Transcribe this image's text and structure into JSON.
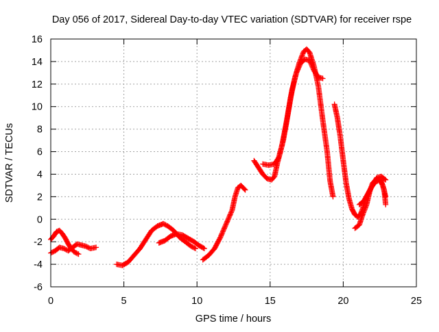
{
  "chart_data": {
    "type": "scatter",
    "title": "Day 056 of 2017, Sidereal Day-to-day VTEC variation (SDTVAR) for receiver rspe",
    "xlabel": "GPS time / hours",
    "ylabel": "SDTVAR / TECUs",
    "xlim": [
      0,
      25
    ],
    "ylim": [
      -6,
      16
    ],
    "x_ticks": [
      0,
      5,
      10,
      15,
      20,
      25
    ],
    "y_ticks": [
      -6,
      -4,
      -2,
      0,
      2,
      4,
      6,
      8,
      10,
      12,
      14,
      16
    ],
    "grid": true,
    "marker": "+",
    "series": [
      {
        "name": "SDTVAR",
        "color": "#ff0000",
        "segments": [
          [
            [
              0,
              -1.8
            ],
            [
              0.2,
              -1.5
            ],
            [
              0.4,
              -1.1
            ],
            [
              0.6,
              -1.0
            ],
            [
              0.8,
              -1.3
            ],
            [
              1.0,
              -1.7
            ],
            [
              1.2,
              -2.2
            ],
            [
              1.4,
              -2.6
            ],
            [
              1.6,
              -2.9
            ],
            [
              1.9,
              -3.1
            ]
          ],
          [
            [
              0,
              -3.0
            ],
            [
              0.3,
              -2.8
            ],
            [
              0.6,
              -2.5
            ],
            [
              0.9,
              -2.6
            ],
            [
              1.2,
              -2.8
            ],
            [
              1.5,
              -2.5
            ],
            [
              1.8,
              -2.2
            ],
            [
              2.1,
              -2.3
            ],
            [
              2.4,
              -2.4
            ],
            [
              2.7,
              -2.6
            ],
            [
              3.1,
              -2.5
            ]
          ],
          [
            [
              4.5,
              -4.0
            ],
            [
              4.9,
              -4.1
            ],
            [
              5.3,
              -3.8
            ],
            [
              5.7,
              -3.2
            ],
            [
              6.1,
              -2.6
            ],
            [
              6.5,
              -1.8
            ],
            [
              6.9,
              -1.0
            ],
            [
              7.3,
              -0.6
            ],
            [
              7.7,
              -0.4
            ],
            [
              8.0,
              -0.6
            ],
            [
              8.4,
              -1.0
            ],
            [
              8.8,
              -1.6
            ],
            [
              9.2,
              -2.0
            ],
            [
              9.6,
              -2.4
            ],
            [
              9.9,
              -2.6
            ]
          ],
          [
            [
              7.4,
              -2.1
            ],
            [
              7.8,
              -1.9
            ],
            [
              8.2,
              -1.5
            ],
            [
              8.6,
              -1.3
            ],
            [
              9.0,
              -1.4
            ],
            [
              9.4,
              -1.7
            ],
            [
              9.8,
              -2.0
            ],
            [
              10.1,
              -2.3
            ],
            [
              10.5,
              -2.6
            ]
          ],
          [
            [
              10.4,
              -3.6
            ],
            [
              10.8,
              -3.2
            ],
            [
              11.2,
              -2.6
            ],
            [
              11.6,
              -1.6
            ],
            [
              12.0,
              -0.4
            ],
            [
              12.4,
              0.8
            ],
            [
              12.6,
              2.0
            ],
            [
              12.8,
              2.8
            ],
            [
              13.0,
              3.0
            ],
            [
              13.3,
              2.6
            ]
          ],
          [
            [
              13.9,
              5.2
            ],
            [
              14.2,
              4.6
            ],
            [
              14.5,
              4.0
            ],
            [
              14.8,
              3.6
            ],
            [
              15.1,
              3.5
            ],
            [
              15.3,
              3.8
            ],
            [
              15.5,
              5.0
            ],
            [
              15.8,
              6.5
            ],
            [
              16.1,
              8.5
            ],
            [
              16.4,
              10.8
            ],
            [
              16.7,
              12.6
            ],
            [
              17.0,
              13.9
            ],
            [
              17.3,
              14.9
            ],
            [
              17.5,
              15.1
            ],
            [
              17.7,
              14.8
            ],
            [
              18.0,
              13.6
            ],
            [
              18.3,
              11.8
            ],
            [
              18.6,
              8.8
            ],
            [
              18.9,
              6.0
            ],
            [
              19.1,
              3.4
            ],
            [
              19.3,
              2.0
            ]
          ],
          [
            [
              14.5,
              4.9
            ],
            [
              14.9,
              4.8
            ],
            [
              15.3,
              4.9
            ],
            [
              15.6,
              5.5
            ],
            [
              15.9,
              7.0
            ],
            [
              16.2,
              9.2
            ],
            [
              16.5,
              11.5
            ],
            [
              16.8,
              13.0
            ],
            [
              17.1,
              13.9
            ],
            [
              17.4,
              14.2
            ],
            [
              17.7,
              14.1
            ],
            [
              18.0,
              13.2
            ],
            [
              18.3,
              12.6
            ],
            [
              18.6,
              12.5
            ]
          ],
          [
            [
              19.4,
              10.2
            ],
            [
              19.6,
              9.0
            ],
            [
              19.8,
              7.3
            ],
            [
              20.0,
              5.2
            ],
            [
              20.2,
              3.2
            ],
            [
              20.4,
              1.8
            ],
            [
              20.6,
              0.9
            ],
            [
              20.8,
              0.4
            ],
            [
              21.0,
              0.2
            ],
            [
              21.2,
              0.5
            ],
            [
              21.4,
              1.2
            ],
            [
              21.6,
              2.0
            ],
            [
              21.9,
              2.8
            ],
            [
              22.2,
              3.3
            ],
            [
              22.5,
              3.5
            ],
            [
              22.7,
              3.0
            ],
            [
              22.9,
              2.0
            ]
          ],
          [
            [
              20.8,
              -0.8
            ],
            [
              21.1,
              -0.5
            ],
            [
              21.3,
              0.3
            ],
            [
              21.6,
              1.3
            ],
            [
              21.8,
              2.4
            ],
            [
              22.0,
              3.2
            ],
            [
              22.3,
              3.6
            ],
            [
              22.6,
              3.4
            ],
            [
              22.8,
              2.6
            ],
            [
              22.9,
              1.3
            ]
          ],
          [
            [
              21.1,
              1.3
            ],
            [
              21.4,
              1.6
            ],
            [
              21.7,
              2.3
            ],
            [
              22.0,
              3.0
            ],
            [
              22.3,
              3.7
            ],
            [
              22.6,
              3.8
            ],
            [
              22.9,
              3.5
            ]
          ]
        ]
      }
    ]
  }
}
